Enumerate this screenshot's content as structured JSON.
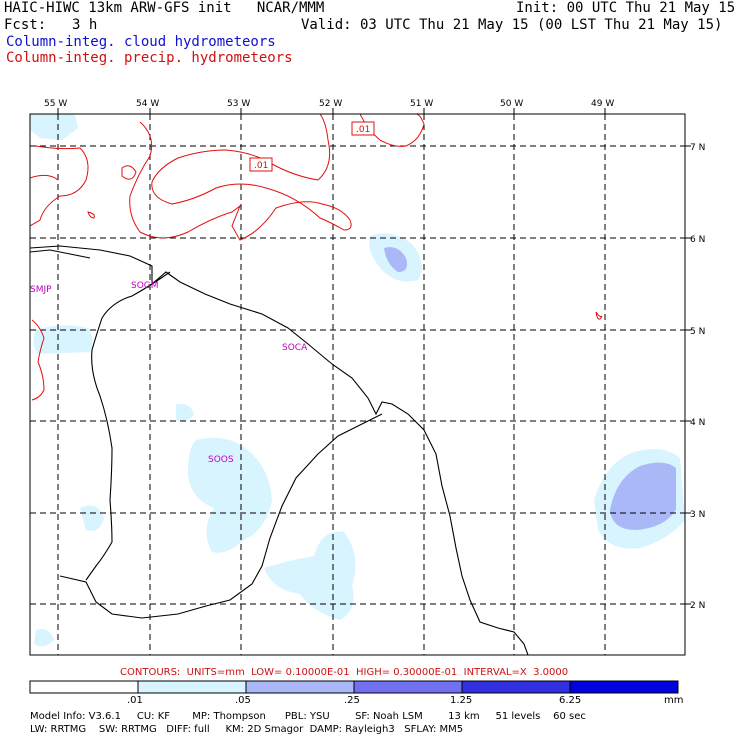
{
  "header": {
    "title": "HAIC-HIWC 13km ARW-GFS init   NCAR/MMM",
    "init": "Init: 00 UTC Thu 21 May 15",
    "fcst_label": "Fcst:",
    "fcst_value": "3 h",
    "valid": "Valid: 03 UTC Thu 21 May 15 (00 LST Thu 21 May 15)",
    "field_cloud": "Column-integ. cloud hydrometeors",
    "field_precip": "Column-integ. precip. hydrometeors"
  },
  "map": {
    "lon_labels": [
      "55 W",
      "54 W",
      "53 W",
      "52 W",
      "51 W",
      "50 W",
      "49 W"
    ],
    "lat_labels": [
      "7 N",
      "6 N",
      "5 N",
      "4 N",
      "3 N",
      "2 N"
    ],
    "stations": [
      "SMJP",
      "SOGM",
      "SOCA",
      "SOOS"
    ],
    "contour_labels": [
      ".01",
      ".01"
    ]
  },
  "contours_info": "CONTOURS:  UNITS=mm  LOW= 0.10000E-01  HIGH= 0.30000E-01  INTERVAL=X  3.0000",
  "colorbar": {
    "labels": [
      ".01",
      ".05",
      ".25",
      "1.25",
      "6.25"
    ],
    "units": "mm",
    "colors": [
      "#ffffff",
      "#d8f4ff",
      "#aab8f8",
      "#7070f0",
      "#3030e0",
      "#0000e0"
    ]
  },
  "model_info": {
    "line1": "Model Info: V3.6.1     CU: KF       MP: Thompson      PBL: YSU        SF: Noah LSM        13 km     51 levels    60 sec",
    "line2": "LW: RRTMG    SW: RRTMG   DIFF: full     KM: 2D Smagor  DAMP: Rayleigh3   SFLAY: MM5"
  }
}
